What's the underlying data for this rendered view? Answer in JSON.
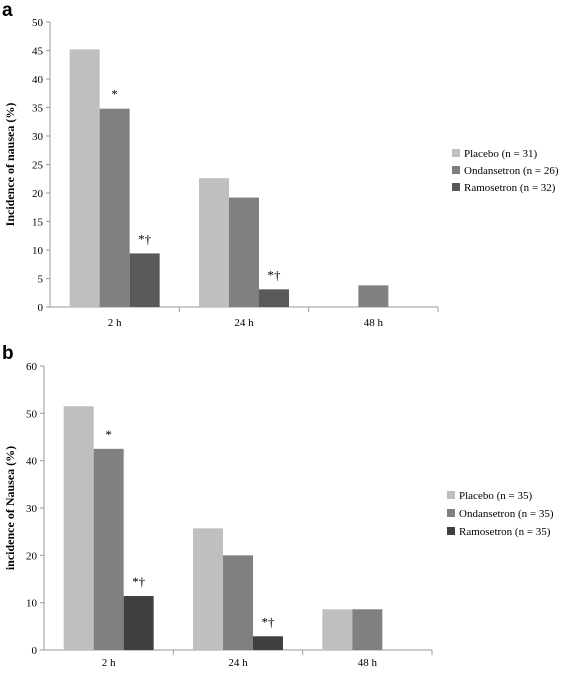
{
  "chart_data": [
    {
      "panel": "a",
      "type": "bar",
      "categories": [
        "2 h",
        "24 h",
        "48 h"
      ],
      "series": [
        {
          "name": "Placebo (n = 31)",
          "values": [
            45.2,
            22.6,
            0
          ],
          "color": "#bfbfbf"
        },
        {
          "name": "Ondansetron (n = 26)",
          "values": [
            34.8,
            19.2,
            3.8
          ],
          "color": "#808080"
        },
        {
          "name": "Ramosetron (n = 32)",
          "values": [
            9.4,
            3.1,
            0
          ],
          "color": "#595959"
        }
      ],
      "annotations": [
        {
          "category": "2 h",
          "series": 1,
          "text": "*"
        },
        {
          "category": "2 h",
          "series": 2,
          "text": "*†"
        },
        {
          "category": "24 h",
          "series": 2,
          "text": "*†"
        }
      ],
      "ylabel": "Incidence of nausea (%)",
      "ylim": [
        0,
        50
      ],
      "yticks": [
        "0",
        "5",
        "10",
        "15",
        "20",
        "25",
        "30",
        "35",
        "40",
        "45",
        "50"
      ],
      "ytick_values": [
        0,
        5,
        10,
        15,
        20,
        25,
        30,
        35,
        40,
        45,
        50
      ],
      "grid": false,
      "legend_position": "right"
    },
    {
      "panel": "b",
      "type": "bar",
      "categories": [
        "2 h",
        "24 h",
        "48 h"
      ],
      "series": [
        {
          "name": "Placebo (n = 35)",
          "values": [
            51.5,
            25.7,
            8.6
          ],
          "color": "#bfbfbf"
        },
        {
          "name": "Ondansetron (n = 35)",
          "values": [
            42.5,
            20.0,
            8.6
          ],
          "color": "#808080"
        },
        {
          "name": "Ramosetron (n = 35)",
          "values": [
            11.4,
            2.9,
            0
          ],
          "color": "#404040"
        }
      ],
      "annotations": [
        {
          "category": "2 h",
          "series": 1,
          "text": "*"
        },
        {
          "category": "2 h",
          "series": 2,
          "text": "*†"
        },
        {
          "category": "24 h",
          "series": 2,
          "text": "*†"
        }
      ],
      "ylabel": "incidence of Nausea (%)",
      "ylim": [
        0,
        60
      ],
      "yticks": [
        "0",
        "10",
        "20",
        "30",
        "40",
        "50",
        "60"
      ],
      "ytick_values": [
        0,
        10,
        20,
        30,
        40,
        50,
        60
      ],
      "grid": false,
      "legend_position": "right"
    }
  ]
}
